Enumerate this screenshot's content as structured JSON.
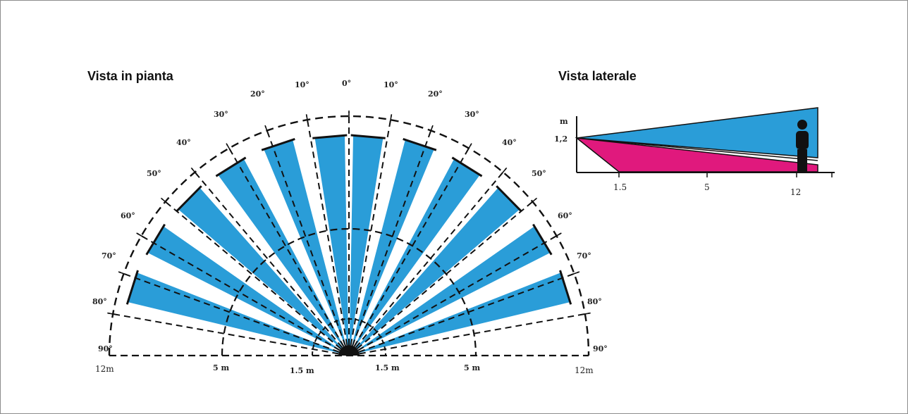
{
  "plan_view": {
    "title": "Vista in pianta",
    "angle_labels_left": [
      "90°",
      "80°",
      "70°",
      "60°",
      "50°",
      "40°",
      "30°",
      "20°",
      "10°"
    ],
    "center_label": "0°",
    "angle_labels_right": [
      "10°",
      "20°",
      "30°",
      "40°",
      "50°",
      "60°",
      "70°",
      "80°",
      "90°"
    ],
    "distance_labels_left": [
      "12m",
      "5 m",
      "1.5 m"
    ],
    "distance_labels_right": [
      "1.5 m",
      "5 m",
      "12m"
    ],
    "beam_count": 12,
    "beam_color": "#2a9dd8"
  },
  "side_view": {
    "title": "Vista laterale",
    "y_axis_unit": "m",
    "mount_height_label": "1,2",
    "x_labels": [
      "1.5",
      "5",
      "12"
    ],
    "upper_zone_color": "#2a9dd8",
    "lower_zone_color": "#e0197d"
  }
}
